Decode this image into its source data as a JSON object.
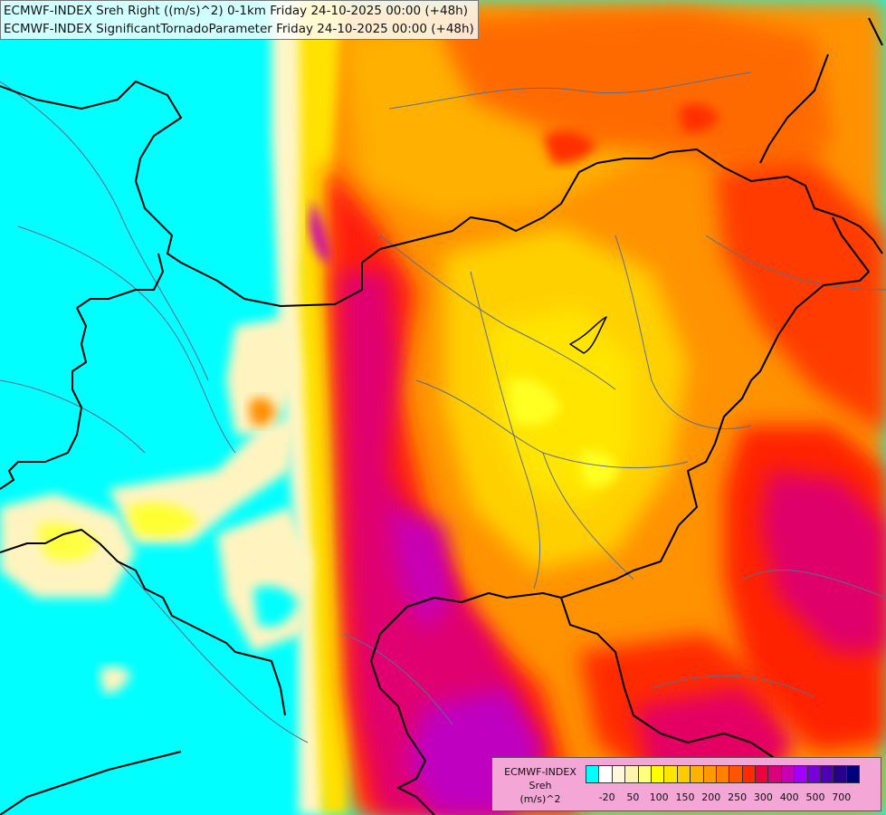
{
  "title": {
    "line1": "ECMWF-INDEX Sreh Right ((m/s)^2) 0-1km Friday 24-10-2025 00:00 (+48h)",
    "line2": "ECMWF-INDEX SignificantTornadoParameter Friday 24-10-2025 00:00 (+48h)"
  },
  "legend": {
    "title1": "ECMWF-INDEX",
    "title2": "Sreh",
    "title3": "(m/s)^2",
    "ticks": [
      {
        "label": "-20",
        "index": 1
      },
      {
        "label": "50",
        "index": 3
      },
      {
        "label": "100",
        "index": 5
      },
      {
        "label": "150",
        "index": 7
      },
      {
        "label": "200",
        "index": 9
      },
      {
        "label": "250",
        "index": 11
      },
      {
        "label": "300",
        "index": 13
      },
      {
        "label": "400",
        "index": 15
      },
      {
        "label": "500",
        "index": 17
      },
      {
        "label": "700",
        "index": 19
      }
    ],
    "colors": [
      "#00ffff",
      "#ffffff",
      "#fff8dc",
      "#fff3b0",
      "#ffff80",
      "#ffff00",
      "#ffe600",
      "#ffcc00",
      "#ffb300",
      "#ff9900",
      "#ff8000",
      "#ff5500",
      "#ff2a00",
      "#f0003c",
      "#d9007a",
      "#c800b4",
      "#a000ff",
      "#7800dc",
      "#5000b4",
      "#28008c",
      "#000078"
    ]
  },
  "map_colors": {
    "ocean": "#00ffff",
    "border_national": "#000000",
    "border_region": "#5a6e8c"
  }
}
